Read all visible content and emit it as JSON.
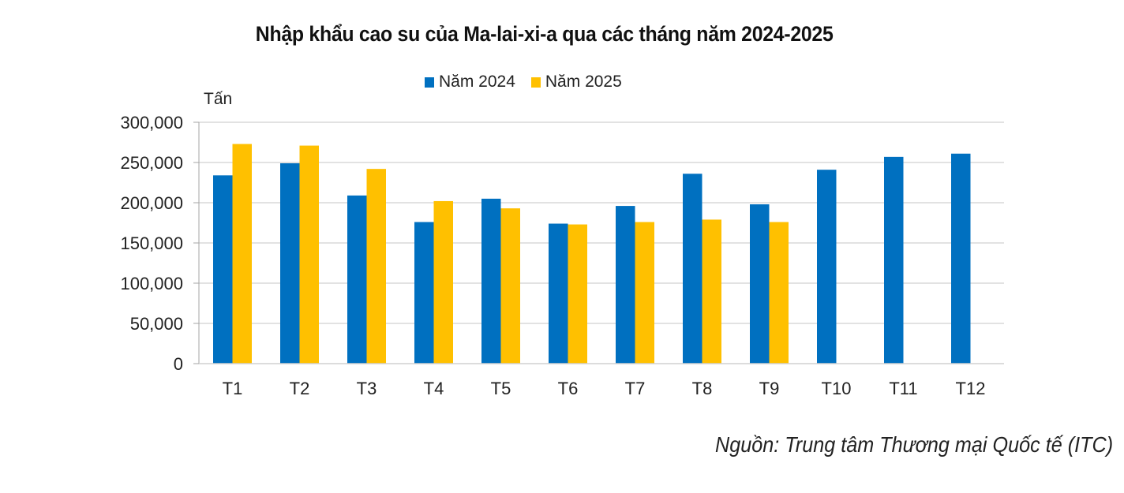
{
  "chart_data": {
    "type": "bar",
    "title": "Nhập khẩu cao su của Ma-lai-xi-a qua các tháng năm 2024-2025",
    "ylabel": "Tấn",
    "xlabel": "",
    "ylim": [
      0,
      300000
    ],
    "yticks": [
      0,
      50000,
      100000,
      150000,
      200000,
      250000,
      300000
    ],
    "ytick_labels": [
      "0",
      "50,000",
      "100,000",
      "150,000",
      "200,000",
      "250,000",
      "300,000"
    ],
    "grid": true,
    "legend_position": "top-center",
    "categories": [
      "T1",
      "T2",
      "T3",
      "T4",
      "T5",
      "T6",
      "T7",
      "T8",
      "T9",
      "T10",
      "T11",
      "T12"
    ],
    "series": [
      {
        "name": "Năm 2024",
        "color": "#0070C0",
        "values": [
          234000,
          249000,
          209000,
          176000,
          205000,
          174000,
          196000,
          236000,
          198000,
          241000,
          257000,
          261000
        ]
      },
      {
        "name": "Năm 2025",
        "color": "#FFC000",
        "values": [
          273000,
          271000,
          242000,
          202000,
          193000,
          173000,
          176000,
          179000,
          176000,
          null,
          null,
          null
        ]
      }
    ],
    "source": "Nguồn: Trung tâm Thương mại Quốc tế (ITC)"
  }
}
